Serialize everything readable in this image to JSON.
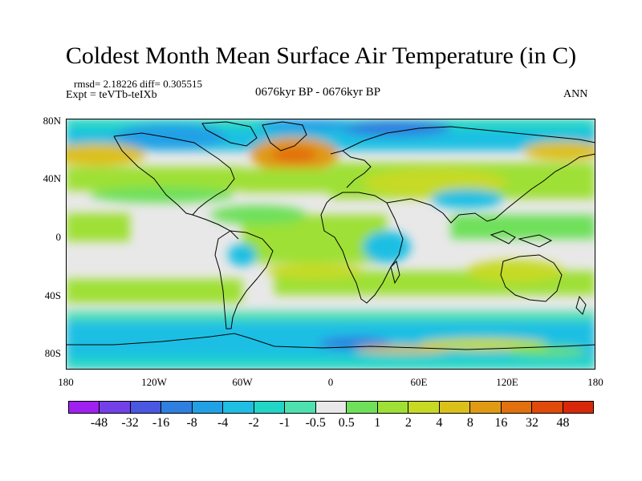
{
  "title": "Coldest Month Mean Surface Air Temperature (in C)",
  "stats_line": "rmsd= 2.18226 diff= 0.305515",
  "expt_line": "Expt = teVTb-teIXb",
  "period": "0676kyr BP - 0676kyr BP",
  "season": "ANN",
  "y_ticks": [
    "80N",
    "40N",
    "0",
    "40S",
    "80S"
  ],
  "x_ticks": [
    "180",
    "120W",
    "60W",
    "0",
    "60E",
    "120E",
    "180"
  ],
  "colorbar": {
    "labels": [
      "-48",
      "-32",
      "-16",
      "-8",
      "-4",
      "-2",
      "-1",
      "-0.5",
      "0.5",
      "1",
      "2",
      "4",
      "8",
      "16",
      "32",
      "48"
    ],
    "colors": [
      "#a020f0",
      "#7340e8",
      "#4a57e0",
      "#2e7fe0",
      "#22a0e6",
      "#1ebfe3",
      "#22d6c6",
      "#4fe0b0",
      "#e8e8e8",
      "#6ee05a",
      "#9ee036",
      "#c6da25",
      "#dcc01a",
      "#e09a14",
      "#e2700e",
      "#e04a0a",
      "#d8280a"
    ]
  }
}
